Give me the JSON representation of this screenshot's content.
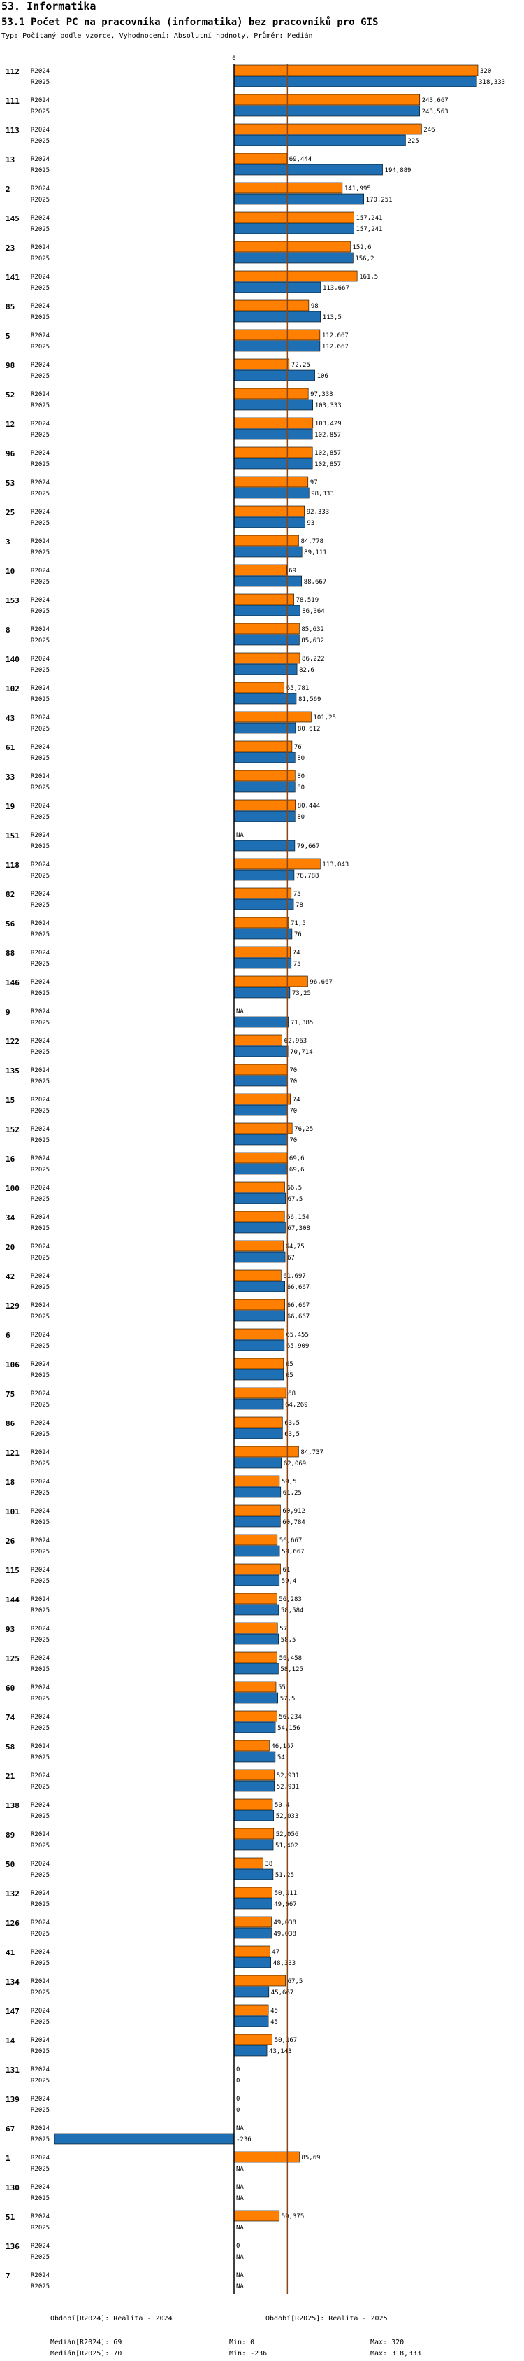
{
  "page": {
    "section": "53. Informatika",
    "title": "53.1 Počet PC na pracovníka (informatika) bez pracovníků pro GIS",
    "subtitle": "Typ: Počítaný podle vzorce, Vyhodnocení: Absolutní hodnoty, Průměr: Medián"
  },
  "colors": {
    "r2024": "#ff8000",
    "r2025": "#1f6fb4",
    "median": "#8b4513",
    "axis": "#000000"
  },
  "chart_data": {
    "type": "bar",
    "orientation": "horizontal",
    "zero_label": "0",
    "xlim": [
      -236,
      320
    ],
    "series_names": [
      "R2024",
      "R2025"
    ],
    "median_value": 70,
    "categories": [
      {
        "id": "112",
        "v2024": 320,
        "l2024": "320",
        "v2025": 318.333,
        "l2025": "318,333"
      },
      {
        "id": "111",
        "v2024": 243.667,
        "l2024": "243,667",
        "v2025": 243.563,
        "l2025": "243,563"
      },
      {
        "id": "113",
        "v2024": 246,
        "l2024": "246",
        "v2025": 225,
        "l2025": "225"
      },
      {
        "id": "13",
        "v2024": 69.444,
        "l2024": "69,444",
        "v2025": 194.889,
        "l2025": "194,889"
      },
      {
        "id": "2",
        "v2024": 141.995,
        "l2024": "141,995",
        "v2025": 170.251,
        "l2025": "170,251"
      },
      {
        "id": "145",
        "v2024": 157.241,
        "l2024": "157,241",
        "v2025": 157.241,
        "l2025": "157,241"
      },
      {
        "id": "23",
        "v2024": 152.6,
        "l2024": "152,6",
        "v2025": 156.2,
        "l2025": "156,2"
      },
      {
        "id": "141",
        "v2024": 161.5,
        "l2024": "161,5",
        "v2025": 113.667,
        "l2025": "113,667"
      },
      {
        "id": "85",
        "v2024": 98,
        "l2024": "98",
        "v2025": 113.5,
        "l2025": "113,5"
      },
      {
        "id": "5",
        "v2024": 112.667,
        "l2024": "112,667",
        "v2025": 112.667,
        "l2025": "112,667"
      },
      {
        "id": "98",
        "v2024": 72.25,
        "l2024": "72,25",
        "v2025": 106,
        "l2025": "106"
      },
      {
        "id": "52",
        "v2024": 97.333,
        "l2024": "97,333",
        "v2025": 103.333,
        "l2025": "103,333"
      },
      {
        "id": "12",
        "v2024": 103.429,
        "l2024": "103,429",
        "v2025": 102.857,
        "l2025": "102,857"
      },
      {
        "id": "96",
        "v2024": 102.857,
        "l2024": "102,857",
        "v2025": 102.857,
        "l2025": "102,857"
      },
      {
        "id": "53",
        "v2024": 97,
        "l2024": "97",
        "v2025": 98.333,
        "l2025": "98,333"
      },
      {
        "id": "25",
        "v2024": 92.333,
        "l2024": "92,333",
        "v2025": 93,
        "l2025": "93"
      },
      {
        "id": "3",
        "v2024": 84.778,
        "l2024": "84,778",
        "v2025": 89.111,
        "l2025": "89,111"
      },
      {
        "id": "10",
        "v2024": 69,
        "l2024": "69",
        "v2025": 88.667,
        "l2025": "88,667"
      },
      {
        "id": "153",
        "v2024": 78.519,
        "l2024": "78,519",
        "v2025": 86.364,
        "l2025": "86,364"
      },
      {
        "id": "8",
        "v2024": 85.632,
        "l2024": "85,632",
        "v2025": 85.632,
        "l2025": "85,632"
      },
      {
        "id": "140",
        "v2024": 86.222,
        "l2024": "86,222",
        "v2025": 82.6,
        "l2025": "82,6"
      },
      {
        "id": "102",
        "v2024": 65.781,
        "l2024": "65,781",
        "v2025": 81.569,
        "l2025": "81,569"
      },
      {
        "id": "43",
        "v2024": 101.25,
        "l2024": "101,25",
        "v2025": 80.612,
        "l2025": "80,612"
      },
      {
        "id": "61",
        "v2024": 76,
        "l2024": "76",
        "v2025": 80,
        "l2025": "80"
      },
      {
        "id": "33",
        "v2024": 80,
        "l2024": "80",
        "v2025": 80,
        "l2025": "80"
      },
      {
        "id": "19",
        "v2024": 80.444,
        "l2024": "80,444",
        "v2025": 80,
        "l2025": "80"
      },
      {
        "id": "151",
        "v2024": null,
        "l2024": "NA",
        "v2025": 79.667,
        "l2025": "79,667"
      },
      {
        "id": "118",
        "v2024": 113.043,
        "l2024": "113,043",
        "v2025": 78.788,
        "l2025": "78,788"
      },
      {
        "id": "82",
        "v2024": 75,
        "l2024": "75",
        "v2025": 78,
        "l2025": "78"
      },
      {
        "id": "56",
        "v2024": 71.5,
        "l2024": "71,5",
        "v2025": 76,
        "l2025": "76"
      },
      {
        "id": "88",
        "v2024": 74,
        "l2024": "74",
        "v2025": 75,
        "l2025": "75"
      },
      {
        "id": "146",
        "v2024": 96.667,
        "l2024": "96,667",
        "v2025": 73.25,
        "l2025": "73,25"
      },
      {
        "id": "9",
        "v2024": null,
        "l2024": "NA",
        "v2025": 71.385,
        "l2025": "71,385"
      },
      {
        "id": "122",
        "v2024": 62.963,
        "l2024": "62,963",
        "v2025": 70.714,
        "l2025": "70,714"
      },
      {
        "id": "135",
        "v2024": 70,
        "l2024": "70",
        "v2025": 70,
        "l2025": "70"
      },
      {
        "id": "15",
        "v2024": 74,
        "l2024": "74",
        "v2025": 70,
        "l2025": "70"
      },
      {
        "id": "152",
        "v2024": 76.25,
        "l2024": "76,25",
        "v2025": 70,
        "l2025": "70"
      },
      {
        "id": "16",
        "v2024": 69.6,
        "l2024": "69,6",
        "v2025": 69.6,
        "l2025": "69,6"
      },
      {
        "id": "100",
        "v2024": 66.5,
        "l2024": "66,5",
        "v2025": 67.5,
        "l2025": "67,5"
      },
      {
        "id": "34",
        "v2024": 66.154,
        "l2024": "66,154",
        "v2025": 67.308,
        "l2025": "67,308"
      },
      {
        "id": "20",
        "v2024": 64.75,
        "l2024": "64,75",
        "v2025": 67,
        "l2025": "67"
      },
      {
        "id": "42",
        "v2024": 61.697,
        "l2024": "61,697",
        "v2025": 66.667,
        "l2025": "66,667"
      },
      {
        "id": "129",
        "v2024": 66.667,
        "l2024": "66,667",
        "v2025": 66.667,
        "l2025": "66,667"
      },
      {
        "id": "6",
        "v2024": 65.455,
        "l2024": "65,455",
        "v2025": 65.909,
        "l2025": "65,909"
      },
      {
        "id": "106",
        "v2024": 65,
        "l2024": "65",
        "v2025": 65,
        "l2025": "65"
      },
      {
        "id": "75",
        "v2024": 68,
        "l2024": "68",
        "v2025": 64.269,
        "l2025": "64,269"
      },
      {
        "id": "86",
        "v2024": 63.5,
        "l2024": "63,5",
        "v2025": 63.5,
        "l2025": "63,5"
      },
      {
        "id": "121",
        "v2024": 84.737,
        "l2024": "84,737",
        "v2025": 62.069,
        "l2025": "62,069"
      },
      {
        "id": "18",
        "v2024": 59.5,
        "l2024": "59,5",
        "v2025": 61.25,
        "l2025": "61,25"
      },
      {
        "id": "101",
        "v2024": 60.912,
        "l2024": "60,912",
        "v2025": 60.784,
        "l2025": "60,784"
      },
      {
        "id": "26",
        "v2024": 56.667,
        "l2024": "56,667",
        "v2025": 59.667,
        "l2025": "59,667"
      },
      {
        "id": "115",
        "v2024": 61,
        "l2024": "61",
        "v2025": 59.4,
        "l2025": "59,4"
      },
      {
        "id": "144",
        "v2024": 56.283,
        "l2024": "56,283",
        "v2025": 58.584,
        "l2025": "58,584"
      },
      {
        "id": "93",
        "v2024": 57,
        "l2024": "57",
        "v2025": 58.5,
        "l2025": "58,5"
      },
      {
        "id": "125",
        "v2024": 56.458,
        "l2024": "56,458",
        "v2025": 58.125,
        "l2025": "58,125"
      },
      {
        "id": "60",
        "v2024": 55,
        "l2024": "55",
        "v2025": 57.5,
        "l2025": "57,5"
      },
      {
        "id": "74",
        "v2024": 56.234,
        "l2024": "56,234",
        "v2025": 54.156,
        "l2025": "54,156"
      },
      {
        "id": "58",
        "v2024": 46.167,
        "l2024": "46,167",
        "v2025": 54,
        "l2025": "54"
      },
      {
        "id": "21",
        "v2024": 52.931,
        "l2024": "52,931",
        "v2025": 52.931,
        "l2025": "52,931"
      },
      {
        "id": "138",
        "v2024": 50.4,
        "l2024": "50,4",
        "v2025": 52.033,
        "l2025": "52,033"
      },
      {
        "id": "89",
        "v2024": 52.056,
        "l2024": "52,056",
        "v2025": 51.402,
        "l2025": "51,402"
      },
      {
        "id": "50",
        "v2024": 38,
        "l2024": "38",
        "v2025": 51.25,
        "l2025": "51,25"
      },
      {
        "id": "132",
        "v2024": 50.111,
        "l2024": "50,111",
        "v2025": 49.667,
        "l2025": "49,667"
      },
      {
        "id": "126",
        "v2024": 49.038,
        "l2024": "49,038",
        "v2025": 49.038,
        "l2025": "49,038"
      },
      {
        "id": "41",
        "v2024": 47,
        "l2024": "47",
        "v2025": 48.333,
        "l2025": "48,333"
      },
      {
        "id": "134",
        "v2024": 67.5,
        "l2024": "67,5",
        "v2025": 45.667,
        "l2025": "45,667"
      },
      {
        "id": "147",
        "v2024": 45,
        "l2024": "45",
        "v2025": 45,
        "l2025": "45"
      },
      {
        "id": "14",
        "v2024": 50.167,
        "l2024": "50,167",
        "v2025": 43.143,
        "l2025": "43,143"
      },
      {
        "id": "131",
        "v2024": 0,
        "l2024": "0",
        "v2025": 0,
        "l2025": "0"
      },
      {
        "id": "139",
        "v2024": 0,
        "l2024": "0",
        "v2025": 0,
        "l2025": "0"
      },
      {
        "id": "67",
        "v2024": null,
        "l2024": "NA",
        "v2025": -236,
        "l2025": "-236"
      },
      {
        "id": "1",
        "v2024": 85.69,
        "l2024": "85,69",
        "v2025": null,
        "l2025": "NA"
      },
      {
        "id": "130",
        "v2024": null,
        "l2024": "NA",
        "v2025": null,
        "l2025": "NA"
      },
      {
        "id": "51",
        "v2024": 59.375,
        "l2024": "59,375",
        "v2025": null,
        "l2025": "NA"
      },
      {
        "id": "136",
        "v2024": 0,
        "l2024": "0",
        "v2025": null,
        "l2025": "NA"
      },
      {
        "id": "7",
        "v2024": null,
        "l2024": "NA",
        "v2025": null,
        "l2025": "NA"
      }
    ]
  },
  "footer": {
    "period_2024": "Období[R2024]: Realita - 2024",
    "period_2025": "Období[R2025]: Realita - 2025",
    "median_2024": "Medián[R2024]: 69",
    "median_2025": "Medián[R2025]: 70",
    "min_2024": "Min: 0",
    "min_2025": "Min: -236",
    "max_2024": "Max: 320",
    "max_2025": "Max: 318,333"
  }
}
